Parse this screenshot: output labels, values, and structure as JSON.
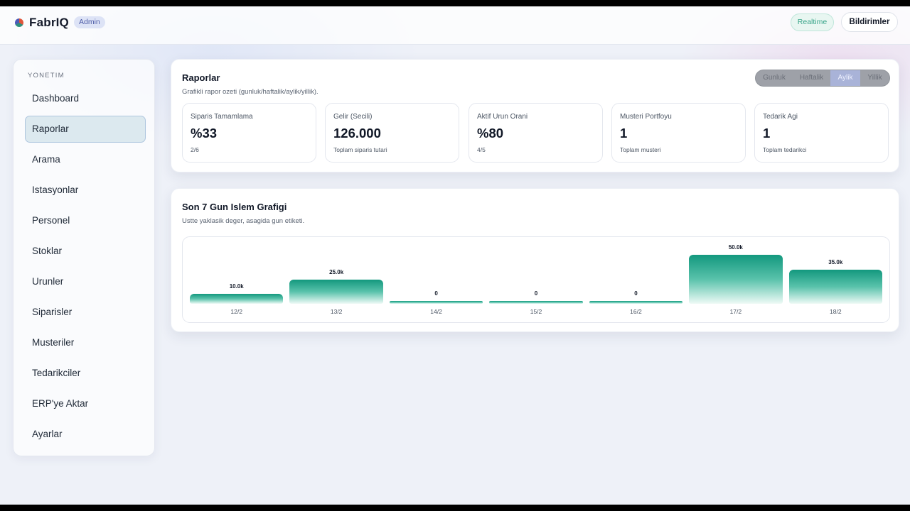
{
  "header": {
    "brand": "FabrIQ",
    "role_badge": "Admin",
    "realtime_label": "Realtime",
    "notifications_label": "Bildirimler"
  },
  "sidebar": {
    "section_label": "YONETIM",
    "items": [
      {
        "label": "Dashboard",
        "active": false
      },
      {
        "label": "Raporlar",
        "active": true
      },
      {
        "label": "Arama",
        "active": false
      },
      {
        "label": "Istasyonlar",
        "active": false
      },
      {
        "label": "Personel",
        "active": false
      },
      {
        "label": "Stoklar",
        "active": false
      },
      {
        "label": "Urunler",
        "active": false
      },
      {
        "label": "Siparisler",
        "active": false
      },
      {
        "label": "Musteriler",
        "active": false
      },
      {
        "label": "Tedarikciler",
        "active": false
      },
      {
        "label": "ERP'ye Aktar",
        "active": false
      },
      {
        "label": "Ayarlar",
        "active": false
      }
    ]
  },
  "reports": {
    "title": "Raporlar",
    "subtitle": "Grafikli rapor ozeti (gunluk/haftalik/aylik/yillik).",
    "periods": [
      {
        "label": "Gunluk",
        "active": false
      },
      {
        "label": "Haftalik",
        "active": false
      },
      {
        "label": "Aylik",
        "active": true
      },
      {
        "label": "Yillik",
        "active": false
      }
    ],
    "kpis": [
      {
        "label": "Siparis Tamamlama",
        "value": "%33",
        "foot": "2/6"
      },
      {
        "label": "Gelir (Secili)",
        "value": "126.000",
        "foot": "Toplam siparis tutari"
      },
      {
        "label": "Aktif Urun Orani",
        "value": "%80",
        "foot": "4/5"
      },
      {
        "label": "Musteri Portfoyu",
        "value": "1",
        "foot": "Toplam musteri"
      },
      {
        "label": "Tedarik Agi",
        "value": "1",
        "foot": "Toplam tedarikci"
      }
    ]
  },
  "chart_section": {
    "title": "Son 7 Gun Islem Grafigi",
    "subtitle": "Ustte yaklasik deger, asagida gun etiketi."
  },
  "chart_data": {
    "type": "bar",
    "categories": [
      "12/2",
      "13/2",
      "14/2",
      "15/2",
      "16/2",
      "17/2",
      "18/2"
    ],
    "values": [
      10000,
      25000,
      0,
      0,
      0,
      50000,
      35000
    ],
    "value_labels": [
      "10.0k",
      "25.0k",
      "0",
      "0",
      "0",
      "50.0k",
      "35.0k"
    ],
    "ylim": [
      0,
      50000
    ],
    "grid": false,
    "colors": {
      "bar_top": "#13987e",
      "bar_bottom": "#eefaf6"
    }
  },
  "colors": {
    "accent": "#13987e",
    "realtime": "#3aa58a",
    "badge": "#4f5ea8"
  }
}
